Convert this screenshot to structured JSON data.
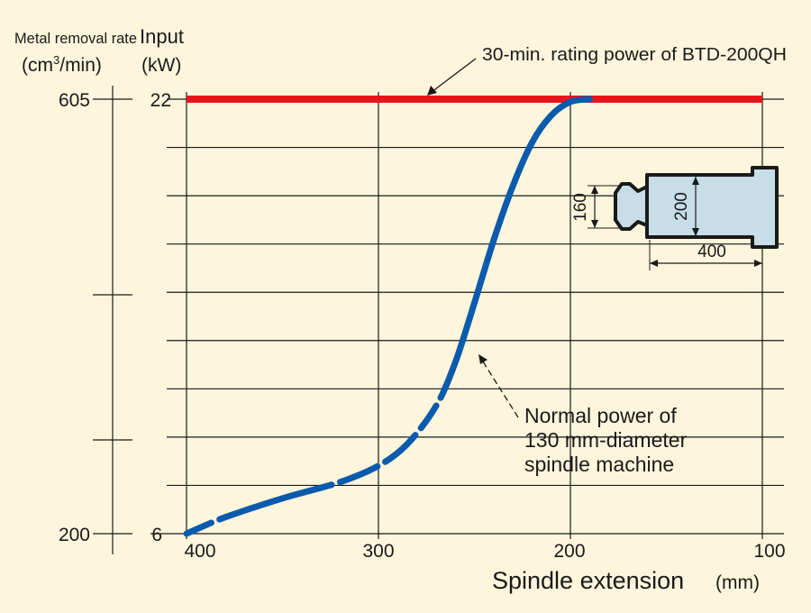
{
  "chart_data": {
    "type": "line",
    "xlabel": "Spindle extension",
    "xunit": "(mm)",
    "x_ticks": [
      "400",
      "300",
      "200",
      "100"
    ],
    "xlim": [
      400,
      100
    ],
    "y_left_label": "Metal removal rate",
    "y_left_unit_prefix": "(cm",
    "y_left_unit_sup": "3",
    "y_left_unit_suffix": "/min)",
    "y_left_ticks": [
      "605",
      "200"
    ],
    "y_right_label": "Input",
    "y_right_unit": "(kW)",
    "y_right_ticks": [
      "22",
      "6"
    ],
    "ylim": [
      6,
      22
    ],
    "series": [
      {
        "name": "30-min. rating power of BTD-200QH",
        "color": "#e8141c",
        "x": [
          400,
          100
        ],
        "y": [
          22,
          22
        ]
      },
      {
        "name": "Normal power of 130 mm-diameter spindle machine",
        "color": "#0a5aad",
        "x": [
          400,
          380,
          350,
          320,
          300,
          285,
          270,
          260,
          250,
          240,
          230,
          220,
          210,
          200,
          190
        ],
        "y": [
          6.0,
          6.6,
          7.3,
          7.9,
          8.5,
          9.3,
          10.7,
          12.3,
          14.5,
          16.8,
          18.8,
          20.4,
          21.4,
          21.9,
          22.0
        ]
      }
    ],
    "annotations": {
      "red_label": "30-min. rating power of BTD-200QH",
      "blue_label_lines": [
        "Normal power of",
        "130 mm-diameter",
        "spindle machine"
      ]
    },
    "inset": {
      "dim_160": "160",
      "dim_200": "200",
      "dim_400": "400"
    }
  }
}
